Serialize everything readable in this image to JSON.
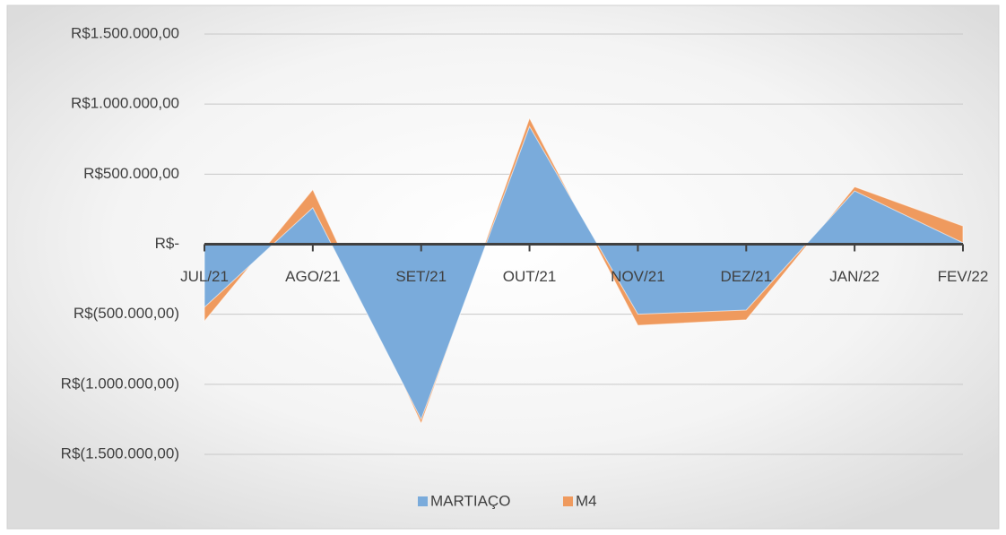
{
  "chart_data": {
    "type": "area",
    "categories": [
      "JUL/21",
      "AGO/21",
      "SET/21",
      "OUT/21",
      "NOV/21",
      "DEZ/21",
      "JAN/22",
      "FEV/22"
    ],
    "series": [
      {
        "name": "MARTIAÇO",
        "color": "#7aabdb",
        "values": [
          -450000,
          260000,
          -1250000,
          840000,
          -500000,
          -470000,
          380000,
          10000
        ]
      },
      {
        "name": "M4",
        "color": "#ef9a5e",
        "values": [
          -550000,
          390000,
          -1280000,
          900000,
          -580000,
          -540000,
          410000,
          130000
        ]
      }
    ],
    "ylim": [
      -1500000,
      1500000
    ],
    "yticks": [
      {
        "value": -1500000,
        "label": "R$(1.500.000,00)"
      },
      {
        "value": -1000000,
        "label": "R$(1.000.000,00)"
      },
      {
        "value": -500000,
        "label": "R$(500.000,00)"
      },
      {
        "value": 0,
        "label": "R$-"
      },
      {
        "value": 500000,
        "label": "R$500.000,00"
      },
      {
        "value": 1000000,
        "label": "R$1.000.000,00"
      },
      {
        "value": 1500000,
        "label": "R$1.500.000,00"
      }
    ],
    "grid": true,
    "legend": "bottom"
  }
}
